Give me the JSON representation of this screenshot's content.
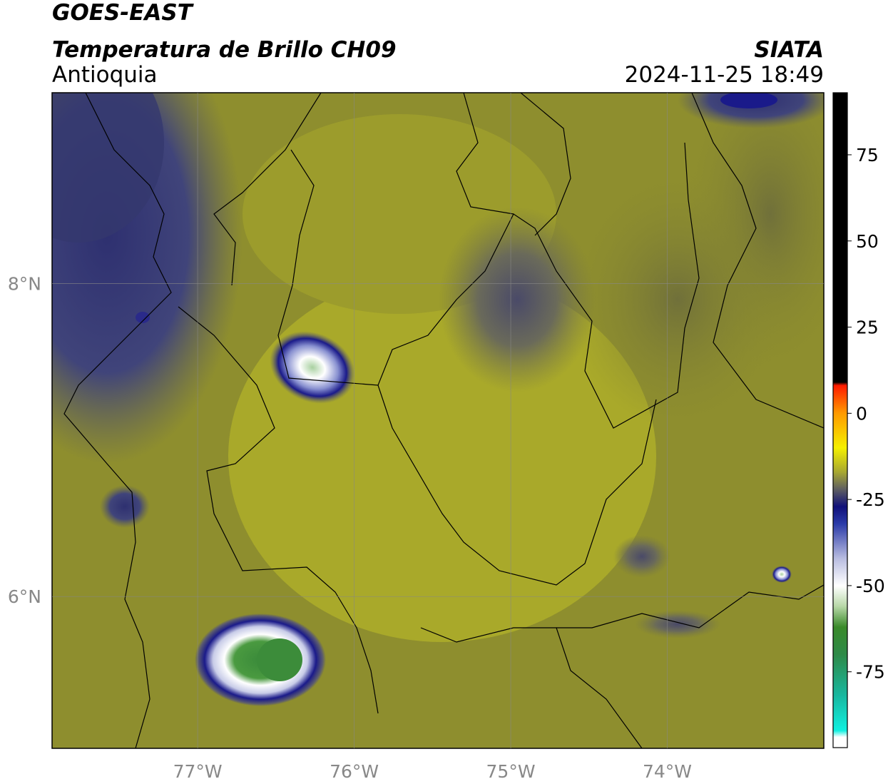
{
  "header": {
    "satellite": "GOES-EAST",
    "product": "Temperatura de Brillo CH09",
    "agency": "SIATA",
    "region": "Antioquia",
    "datetime": "2024-11-25 18:49"
  },
  "map": {
    "xlim": [
      -77.93,
      -73.0
    ],
    "ylim": [
      5.03,
      9.22
    ],
    "xticks": [
      {
        "value": -77,
        "label": "77°W"
      },
      {
        "value": -76,
        "label": "76°W"
      },
      {
        "value": -75,
        "label": "75°W"
      },
      {
        "value": -74,
        "label": "74°W"
      }
    ],
    "yticks": [
      {
        "value": 8,
        "label": "8°N"
      },
      {
        "value": 6,
        "label": "6°N"
      }
    ],
    "grid": true
  },
  "colorbar": {
    "clim": [
      -97,
      93
    ],
    "ticks": [
      75,
      50,
      25,
      0,
      -25,
      -50,
      -75
    ]
  }
}
